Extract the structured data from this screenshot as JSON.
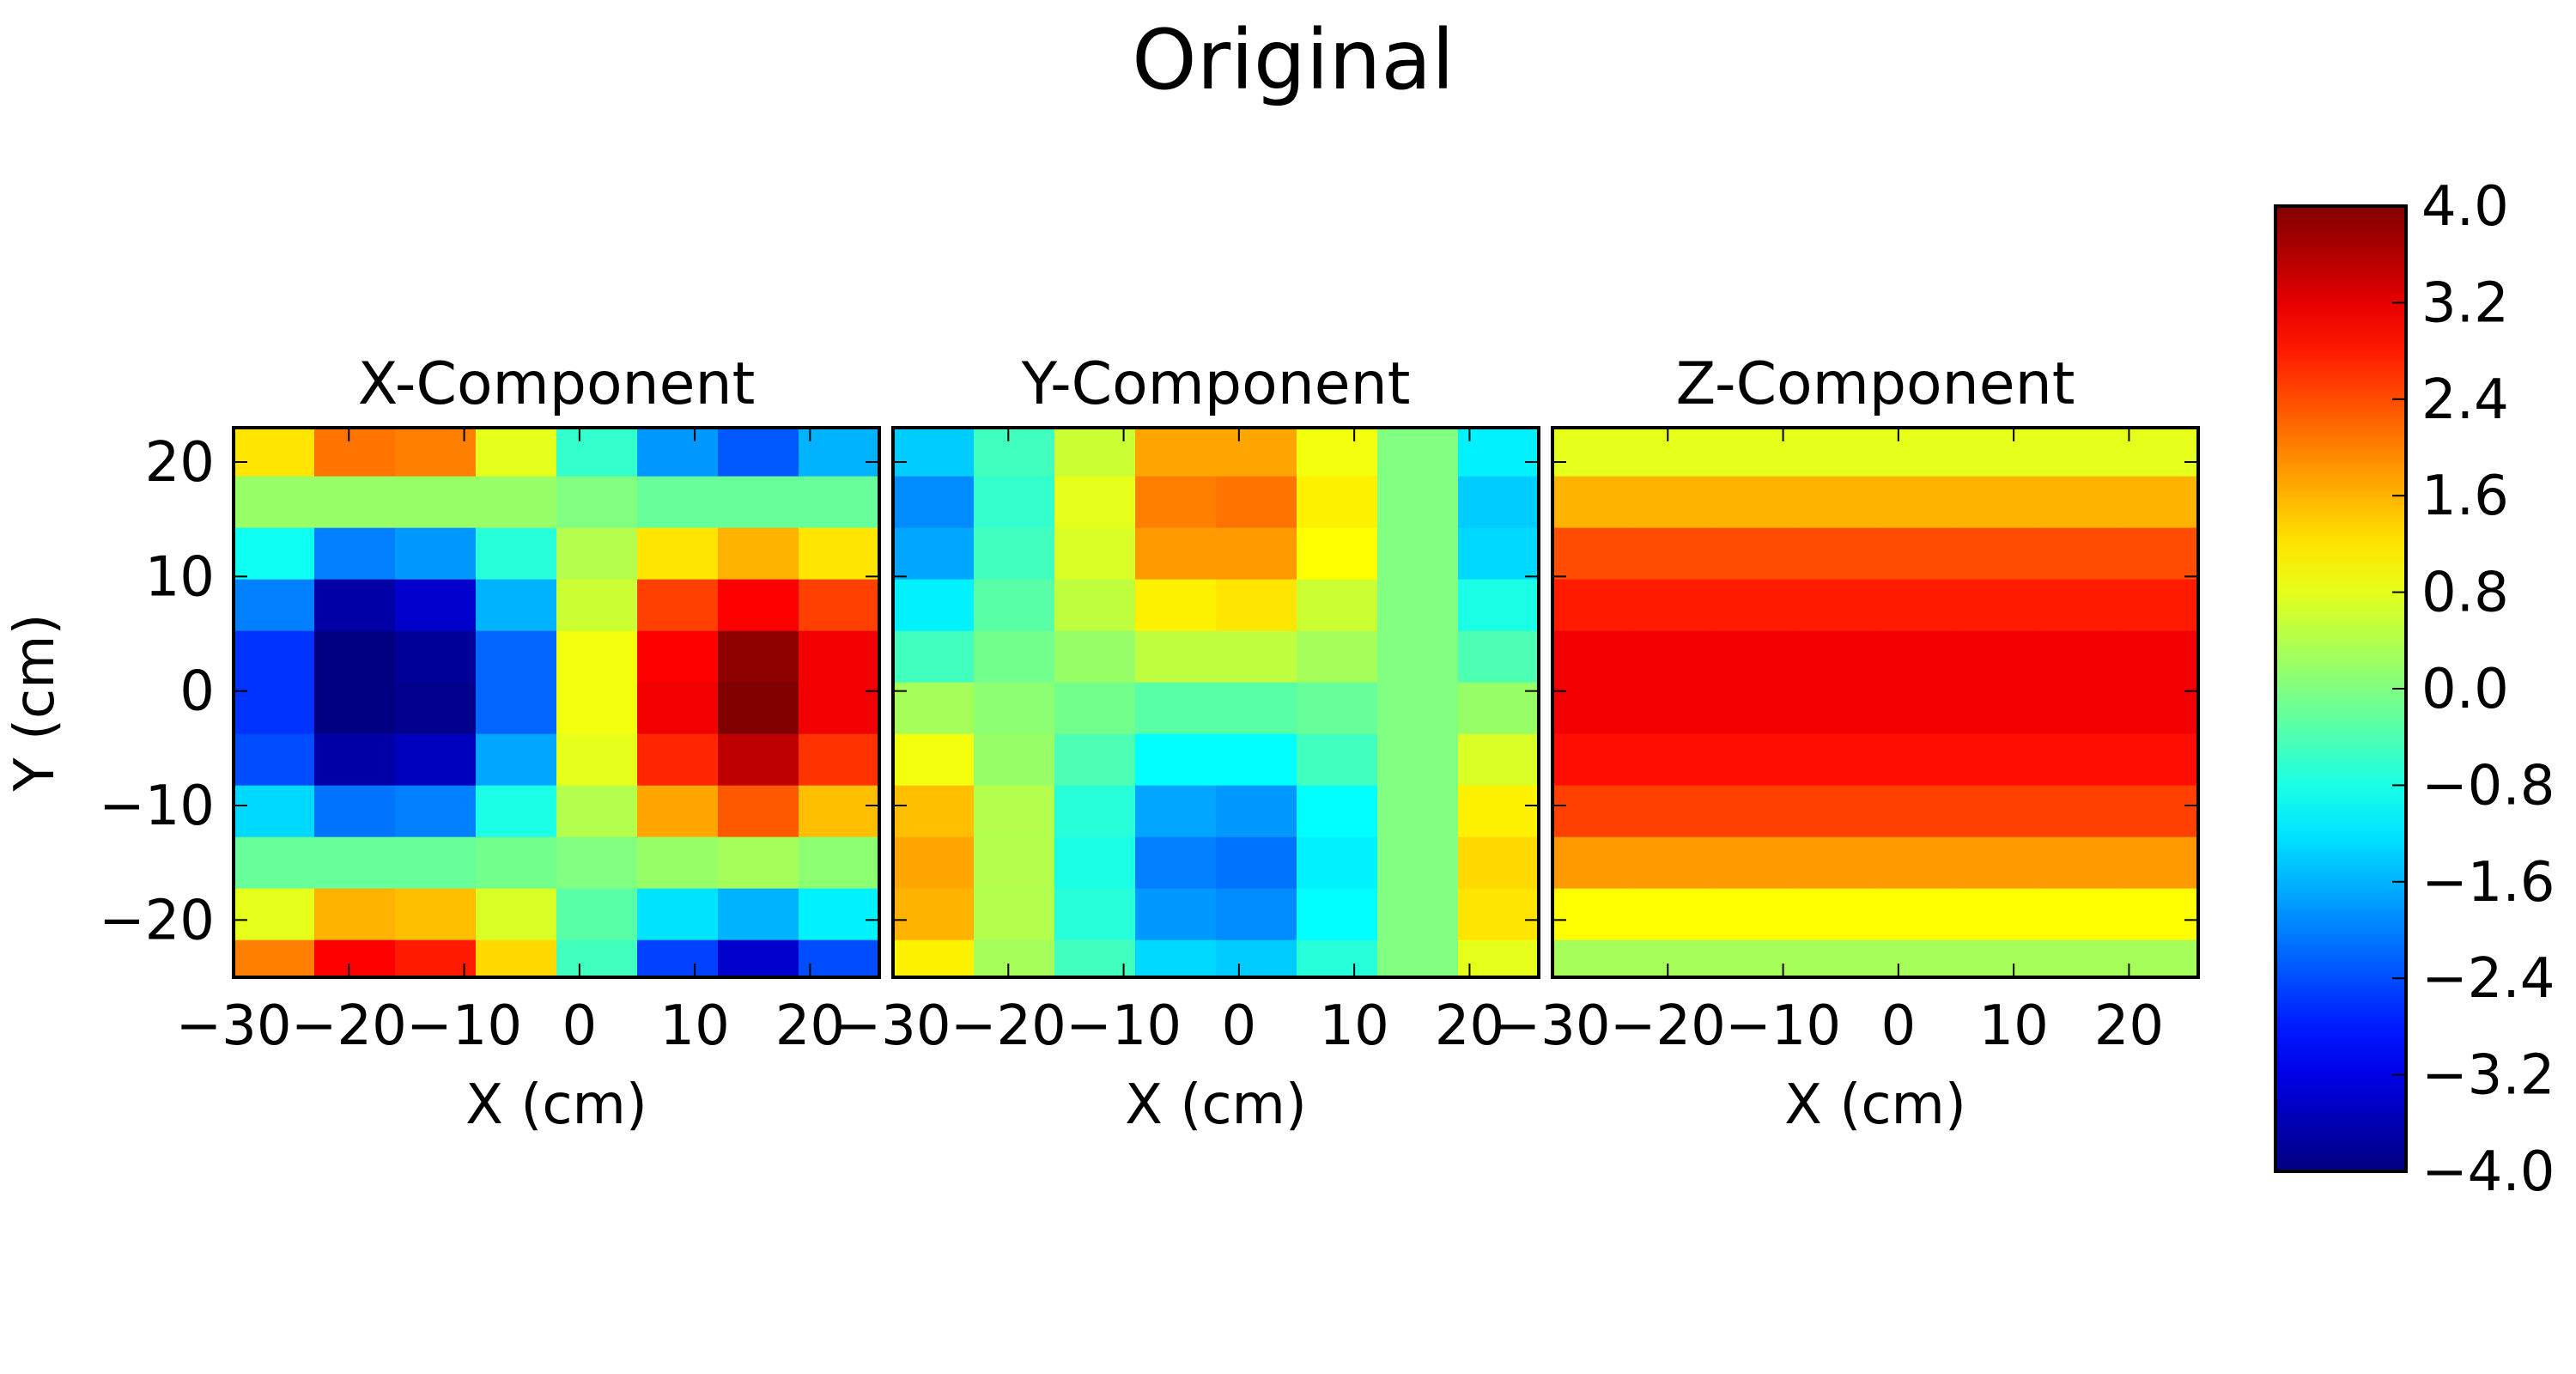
{
  "figure": {
    "title": "Original"
  },
  "chart_data": [
    {
      "type": "heatmap",
      "title": "X-Component",
      "xlabel": "X (cm)",
      "ylabel": "Y (cm)",
      "xlim": [
        -30,
        26
      ],
      "ylim": [
        -25,
        23
      ],
      "x_ticks": [
        -30,
        -20,
        -10,
        0,
        10,
        20
      ],
      "y_ticks": [
        -20,
        -10,
        0,
        10,
        20
      ],
      "x_centers": [
        -26.5,
        -19.5,
        -12.5,
        -5.5,
        1.5,
        8.5,
        15.5,
        22.5
      ],
      "y_centers": [
        21,
        16.5,
        12,
        7.5,
        3,
        -1.5,
        -6,
        -10.5,
        -15,
        -19.5,
        -24
      ],
      "values": [
        [
          1.2,
          2.1,
          2.0,
          0.8,
          -0.6,
          -1.8,
          -2.3,
          -1.6
        ],
        [
          0.2,
          0.2,
          0.2,
          0.2,
          0.0,
          -0.2,
          -0.2,
          -0.2
        ],
        [
          -0.9,
          -2.0,
          -1.8,
          -0.7,
          0.4,
          1.2,
          1.6,
          1.2
        ],
        [
          -2.0,
          -3.7,
          -3.4,
          -1.6,
          0.6,
          2.5,
          3.0,
          2.5
        ],
        [
          -2.6,
          -4.1,
          -3.8,
          -2.2,
          0.9,
          3.0,
          3.9,
          3.1
        ],
        [
          -2.6,
          -4.2,
          -3.9,
          -2.2,
          0.9,
          3.1,
          4.0,
          3.1
        ],
        [
          -2.4,
          -3.7,
          -3.5,
          -1.7,
          0.8,
          2.7,
          3.5,
          2.6
        ],
        [
          -1.3,
          -2.1,
          -2.0,
          -0.8,
          0.4,
          1.7,
          2.3,
          1.5
        ],
        [
          -0.2,
          -0.2,
          -0.2,
          -0.1,
          0.0,
          0.2,
          0.3,
          0.1
        ],
        [
          0.8,
          1.6,
          1.5,
          0.7,
          -0.3,
          -1.2,
          -1.6,
          -1.1
        ],
        [
          2.0,
          3.0,
          2.8,
          1.3,
          -0.5,
          -2.5,
          -3.4,
          -2.4
        ]
      ]
    },
    {
      "type": "heatmap",
      "title": "Y-Component",
      "xlabel": "X (cm)",
      "xlim": [
        -30,
        26
      ],
      "ylim": [
        -25,
        23
      ],
      "x_ticks": [
        -30,
        -20,
        -10,
        0,
        10,
        20
      ],
      "y_ticks": [],
      "x_centers": [
        -26.5,
        -19.5,
        -12.5,
        -5.5,
        1.5,
        8.5,
        15.5,
        22.5
      ],
      "y_centers": [
        21,
        16.5,
        12,
        7.5,
        3,
        -1.5,
        -6,
        -10.5,
        -15,
        -19.5,
        -24
      ],
      "values": [
        [
          -1.4,
          -0.5,
          0.6,
          1.7,
          1.7,
          0.9,
          0.0,
          -1.1
        ],
        [
          -1.9,
          -0.6,
          0.8,
          2.0,
          2.1,
          1.1,
          0.0,
          -1.4
        ],
        [
          -1.7,
          -0.5,
          0.7,
          1.8,
          1.8,
          1.0,
          0.0,
          -1.3
        ],
        [
          -1.1,
          -0.3,
          0.5,
          1.1,
          1.2,
          0.6,
          0.0,
          -0.8
        ],
        [
          -0.5,
          -0.1,
          0.2,
          0.5,
          0.5,
          0.3,
          0.0,
          -0.4
        ],
        [
          0.3,
          0.1,
          -0.1,
          -0.3,
          -0.3,
          -0.2,
          0.0,
          0.2
        ],
        [
          0.9,
          0.2,
          -0.4,
          -1.0,
          -1.0,
          -0.5,
          0.0,
          0.7
        ],
        [
          1.5,
          0.4,
          -0.7,
          -1.7,
          -1.8,
          -1.0,
          0.0,
          1.1
        ],
        [
          1.7,
          0.4,
          -0.8,
          -2.0,
          -2.1,
          -1.1,
          0.0,
          1.3
        ],
        [
          1.6,
          0.4,
          -0.7,
          -1.8,
          -1.9,
          -1.0,
          0.0,
          1.2
        ],
        [
          1.1,
          0.3,
          -0.5,
          -1.3,
          -1.4,
          -0.7,
          0.0,
          0.8
        ]
      ]
    },
    {
      "type": "heatmap",
      "title": "Z-Component",
      "xlabel": "X (cm)",
      "xlim": [
        -30,
        26
      ],
      "ylim": [
        -25,
        23
      ],
      "x_ticks": [
        -30,
        -20,
        -10,
        0,
        10,
        20
      ],
      "y_ticks": [],
      "x_centers": [
        -26.5,
        -19.5,
        -12.5,
        -5.5,
        1.5,
        8.5,
        15.5,
        22.5
      ],
      "y_centers": [
        21,
        16.5,
        12,
        7.5,
        3,
        -1.5,
        -6,
        -10.5,
        -15,
        -19.5,
        -24
      ],
      "values": [
        [
          0.8,
          0.8,
          0.8,
          0.8,
          0.8,
          0.8,
          0.8,
          0.8
        ],
        [
          1.6,
          1.6,
          1.6,
          1.6,
          1.6,
          1.6,
          1.6,
          1.6
        ],
        [
          2.4,
          2.4,
          2.4,
          2.4,
          2.4,
          2.4,
          2.4,
          2.4
        ],
        [
          2.8,
          2.8,
          2.8,
          2.8,
          2.8,
          2.8,
          2.8,
          2.8
        ],
        [
          3.1,
          3.1,
          3.1,
          3.1,
          3.1,
          3.1,
          3.1,
          3.1
        ],
        [
          3.1,
          3.1,
          3.1,
          3.1,
          3.1,
          3.1,
          3.1,
          3.1
        ],
        [
          2.9,
          2.9,
          2.9,
          2.9,
          2.9,
          2.9,
          2.9,
          2.9
        ],
        [
          2.5,
          2.5,
          2.5,
          2.5,
          2.5,
          2.5,
          2.5,
          2.5
        ],
        [
          1.8,
          1.8,
          1.8,
          1.8,
          1.8,
          1.8,
          1.8,
          1.8
        ],
        [
          1.0,
          1.0,
          1.0,
          1.0,
          1.0,
          1.0,
          1.0,
          1.0
        ],
        [
          0.3,
          0.3,
          0.3,
          0.3,
          0.3,
          0.3,
          0.3,
          0.3
        ]
      ]
    }
  ],
  "colorbar": {
    "colormap": "jet",
    "range": [
      -4.0,
      4.0
    ],
    "ticks": [
      "4.0",
      "3.2",
      "2.4",
      "1.6",
      "0.8",
      "0.0",
      "−0.8",
      "−1.6",
      "−2.4",
      "−3.2",
      "−4.0"
    ],
    "tick_values": [
      4.0,
      3.2,
      2.4,
      1.6,
      0.8,
      0.0,
      -0.8,
      -1.6,
      -2.4,
      -3.2,
      -4.0
    ]
  }
}
